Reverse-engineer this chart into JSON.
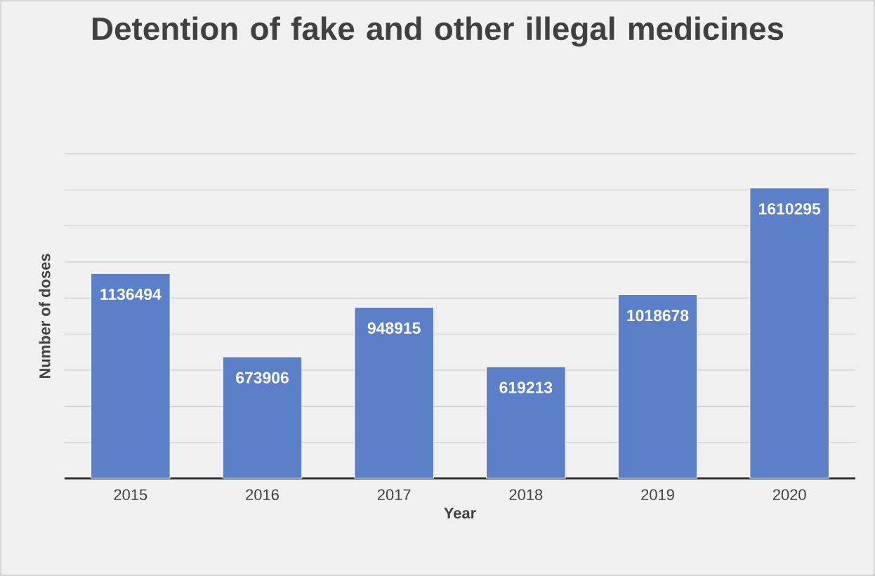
{
  "chart_data": {
    "type": "bar",
    "title": "Detention of fake and other illegal medicines",
    "xlabel": "Year",
    "ylabel": "Number of doses",
    "categories": [
      "2015",
      "2016",
      "2017",
      "2018",
      "2019",
      "2020"
    ],
    "values": [
      1136494,
      673906,
      948915,
      619213,
      1018678,
      1610295
    ],
    "color": "#5b7fc8",
    "data_labels": true,
    "grid": "y",
    "tick_labels": "x",
    "ylim": [
      0,
      1800000
    ],
    "yticks": [
      {
        "value": 0,
        "label": null
      },
      {
        "value": 200000,
        "label": null
      },
      {
        "value": 400000,
        "label": null
      },
      {
        "value": 600000,
        "label": null
      },
      {
        "value": 800000,
        "label": null
      },
      {
        "value": 1000000,
        "label": null
      },
      {
        "value": 1200000,
        "label": null
      },
      {
        "value": 1400000,
        "label": null
      },
      {
        "value": 1600000,
        "label": null
      },
      {
        "value": 1800000,
        "label": null
      }
    ]
  }
}
